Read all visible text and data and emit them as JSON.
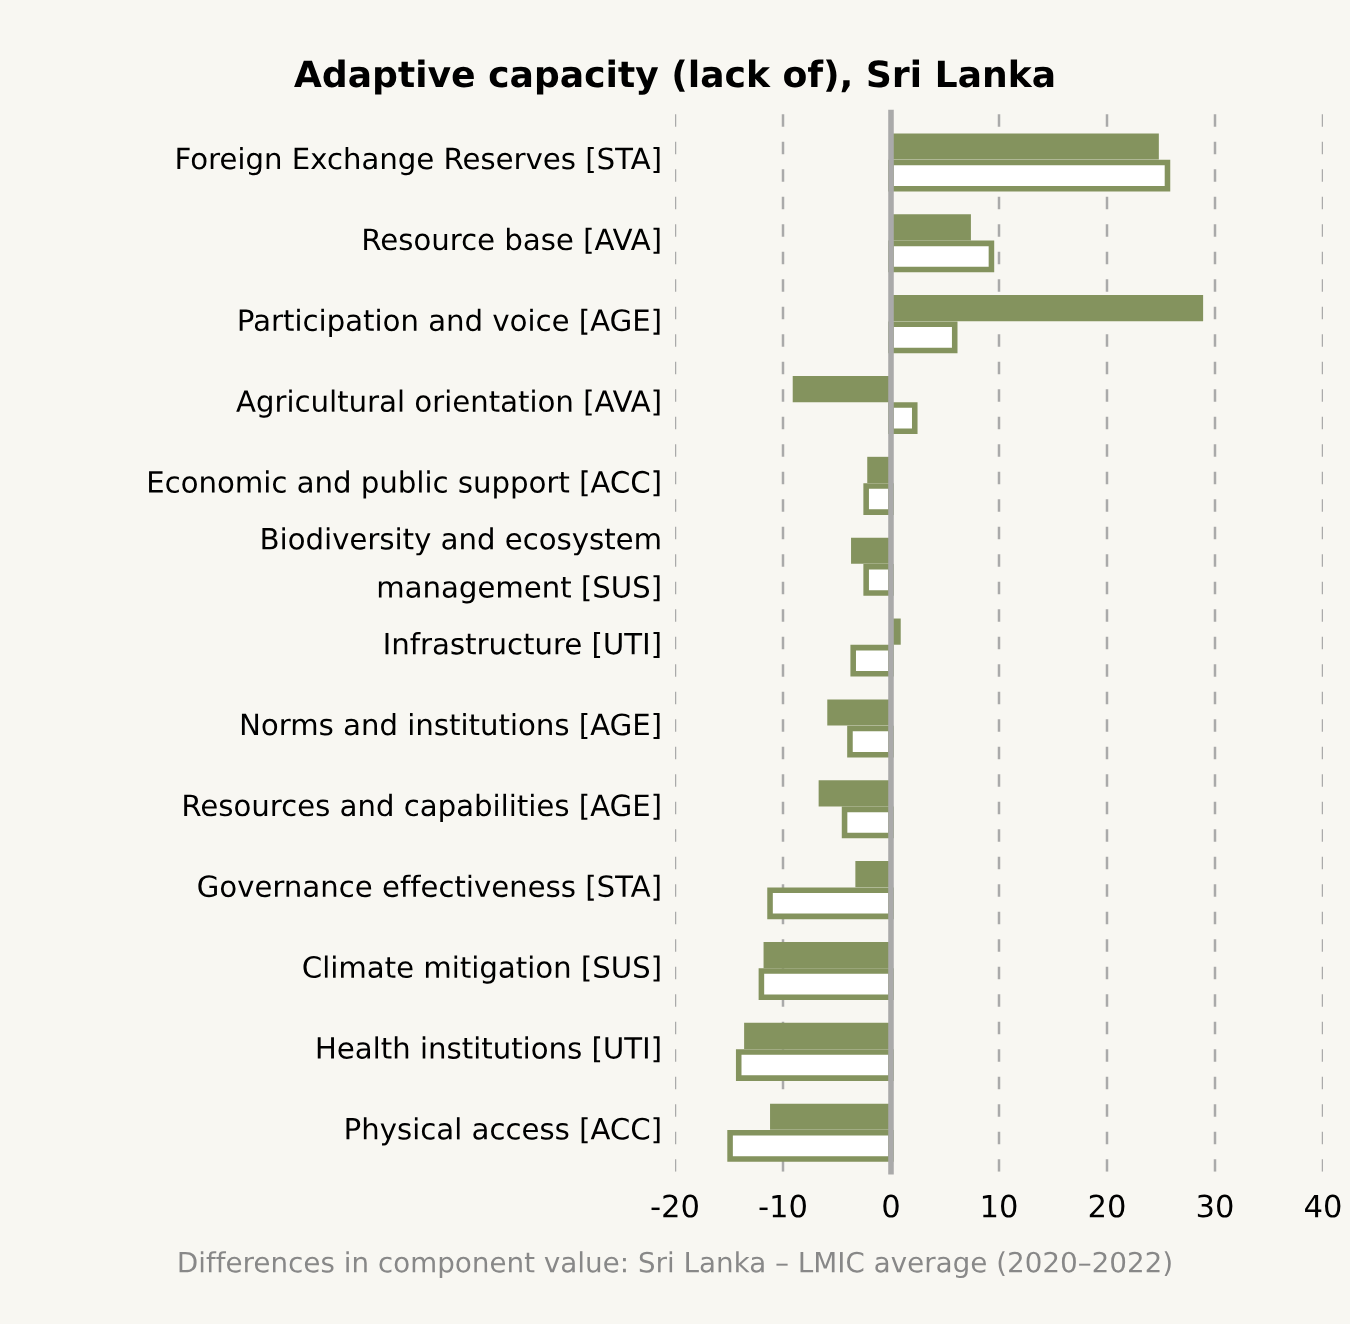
{
  "chart_data": {
    "type": "bar",
    "orientation": "horizontal",
    "title": "Adaptive capacity (lack of), Sri Lanka",
    "xlabel": "Differences in component value: Sri Lanka – LMIC average (2020–2022)",
    "categories": [
      "Foreign Exchange Reserves [STA]",
      "Resource base [AVA]",
      "Participation and voice [AGE]",
      "Agricultural orientation [AVA]",
      "Economic and public support [ACC]",
      "Biodiversity and ecosystem\nmanagement [SUS]",
      "Infrastructure [UTI]",
      "Norms and institutions [AGE]",
      "Resources and capabilities [AGE]",
      "Governance effectiveness [STA]",
      "Climate mitigation [SUS]",
      "Health institutions [UTI]",
      "Physical access [ACC]"
    ],
    "series": [
      {
        "color": "#84935e",
        "values": [
          24.8,
          7.4,
          28.9,
          -9.1,
          -2.2,
          -3.7,
          0.9,
          -5.9,
          -6.7,
          -3.3,
          -11.8,
          -13.6,
          -11.2
        ]
      },
      {
        "color": "#84935e",
        "values": [
          25.6,
          9.3,
          5.9,
          2.2,
          -2.3,
          -2.3,
          -3.5,
          -3.8,
          -4.3,
          -11.2,
          -12.0,
          -14.1,
          -14.9
        ]
      }
    ],
    "xlim": [
      -20,
      40
    ],
    "xticks": [
      -20,
      -10,
      0,
      10,
      20,
      30,
      40
    ],
    "grid": "x",
    "legend": false
  }
}
